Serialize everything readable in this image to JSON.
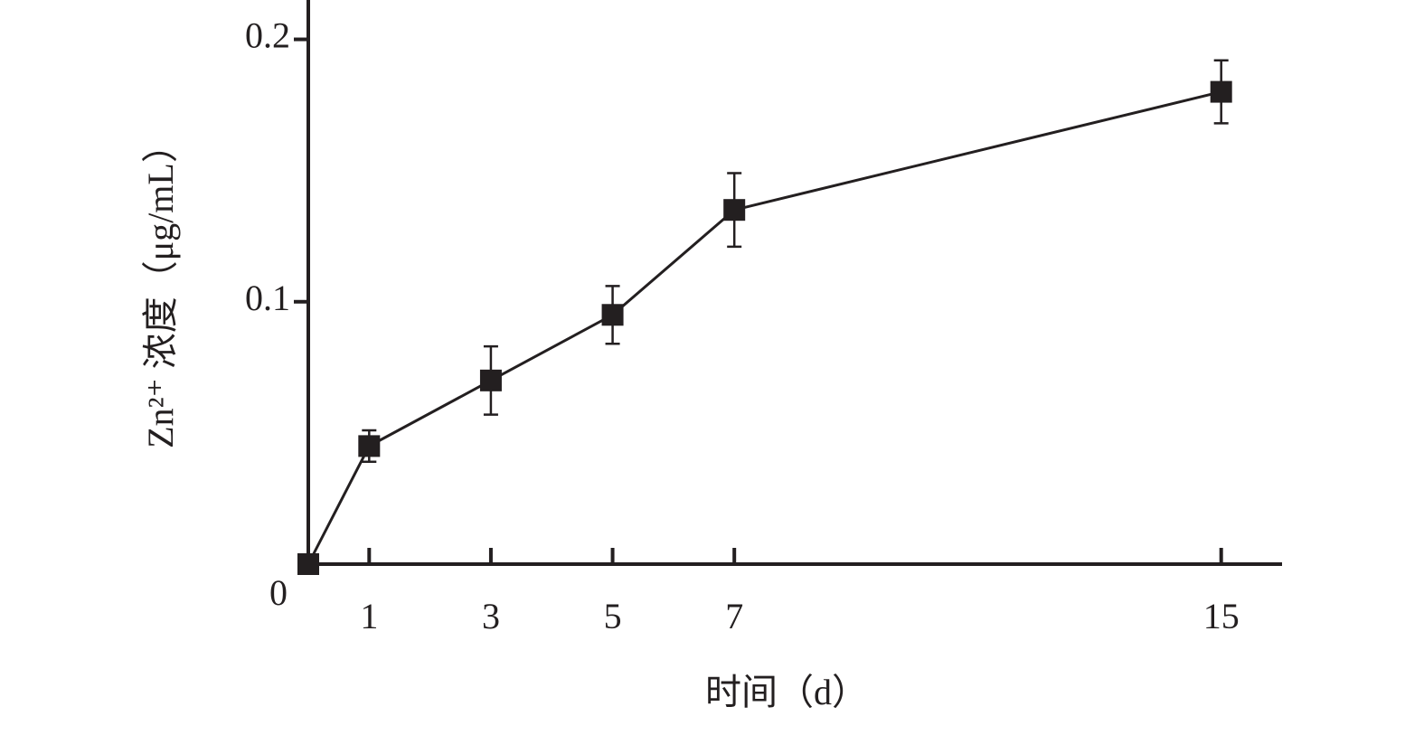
{
  "chart_data": {
    "type": "line",
    "x_label": "时间（d）",
    "y_label": "Zn²⁺ 浓度（μg/mL）",
    "x": [
      0,
      1,
      3,
      5,
      7,
      15
    ],
    "series": [
      {
        "color": "#231f20",
        "values": [
          0,
          0.045,
          0.07,
          0.095,
          0.135,
          0.18
        ],
        "errors": [
          0,
          0.006,
          0.013,
          0.011,
          0.014,
          0.012
        ]
      }
    ],
    "xlim": [
      0,
      16
    ],
    "ylim": [
      0,
      0.215
    ],
    "xticks": [
      1,
      3,
      5,
      7,
      15
    ],
    "yticks": [
      0,
      0.1,
      0.2
    ]
  }
}
